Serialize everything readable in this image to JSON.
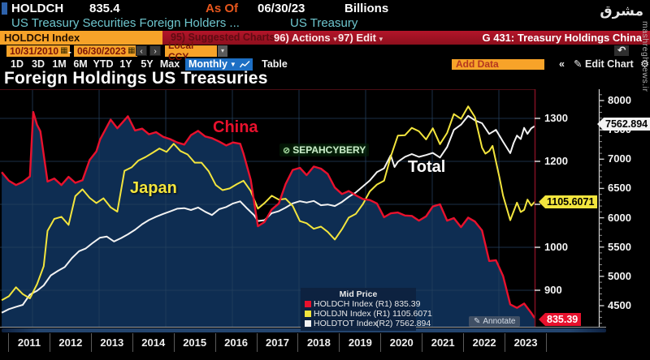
{
  "colors": {
    "accent_orange": "#f7a329",
    "bar_red": "#a31323",
    "blue_chip": "#1d6fc4",
    "china_red": "#e8112d",
    "japan_yellow": "#f3e53d",
    "total_white": "#f2f2f2",
    "fill_navy": "#0e2d52",
    "cyan_text": "#6ec6ce"
  },
  "icons": {
    "calendar": "▦",
    "caret_down": "▾",
    "caret_down_big": "▼",
    "prev": "‹",
    "next": "›",
    "collapse": "«",
    "pencil": "✎",
    "gear": "⚙",
    "undo": "↶",
    "sepah_circle": "⊘"
  },
  "header": {
    "ticker": "HOLDCH",
    "last_value": "835.4",
    "as_of_label": "As Of",
    "as_of_date": "06/30/23",
    "units": "Billions",
    "description": "US Treasury Securities Foreign Holders ...",
    "description2": "US Treasury"
  },
  "menu_bar": {
    "security_chip": "HOLDCH Index",
    "suggested": "95) Suggested Charts",
    "actions": "96) Actions",
    "edit": "97) Edit",
    "title_right": "G 431: Treasury Holdings China"
  },
  "toolbar": {
    "date_from": "10/31/2010",
    "dash": "-",
    "date_to": "06/30/2023",
    "currency": "Local CCY",
    "ranges": [
      "1D",
      "3D",
      "1M",
      "6M",
      "YTD",
      "1Y",
      "5Y",
      "Max"
    ],
    "period": "Monthly",
    "table": "Table",
    "add_data": "Add Data",
    "edit_chart": "Edit Chart"
  },
  "chart": {
    "title": "Foreign Holdings US Treasuries",
    "series_labels": {
      "china": "China",
      "japan": "Japan",
      "total": "Total"
    },
    "legend": {
      "title": "Mid Price",
      "rows": [
        {
          "name": "HOLDCH Index",
          "axis": "(R1)",
          "value": "835.39"
        },
        {
          "name": "HOLDJN Index",
          "axis": "(R1)",
          "value": "1105.6071"
        },
        {
          "name": "HOLDTOT Index",
          "axis": "(R2)",
          "value": "7562.894"
        }
      ]
    },
    "annotate": "Annotate",
    "tags": {
      "total": "7562.894",
      "japan": "1105.6071",
      "china": "835.39"
    }
  },
  "watermarks": {
    "sepah": "SEPAHCYBERY",
    "logo": "مشرق",
    "site": "mashreghnews.ir"
  },
  "chart_data": {
    "type": "line",
    "title": "Foreign Holdings US Treasuries",
    "x_domain": [
      2010.79,
      2023.5
    ],
    "x_ticks": [
      "2011",
      "2012",
      "2013",
      "2014",
      "2015",
      "2016",
      "2017",
      "2018",
      "2019",
      "2020",
      "2021",
      "2022",
      "2023"
    ],
    "axes": {
      "r1": {
        "side": "right-inner",
        "ticks": [
          1300,
          1200,
          1100,
          1000,
          900
        ],
        "range": [
          815,
          1368
        ]
      },
      "r2": {
        "side": "right-outer",
        "ticks": [
          8000,
          7500,
          7000,
          6500,
          6000,
          5500,
          5000,
          4500
        ],
        "range": [
          4140,
          8194
        ]
      }
    },
    "series": [
      {
        "name": "HOLDCH Index",
        "label": "China",
        "axis": "r1",
        "color": "#e8112d",
        "fill": true,
        "last": 835.39,
        "points": [
          [
            2010.83,
            1175
          ],
          [
            2011.0,
            1155
          ],
          [
            2011.17,
            1145
          ],
          [
            2011.33,
            1152
          ],
          [
            2011.5,
            1165
          ],
          [
            2011.58,
            1315
          ],
          [
            2011.67,
            1285
          ],
          [
            2011.75,
            1270
          ],
          [
            2011.92,
            1153
          ],
          [
            2012.08,
            1160
          ],
          [
            2012.25,
            1145
          ],
          [
            2012.42,
            1164
          ],
          [
            2012.58,
            1150
          ],
          [
            2012.75,
            1156
          ],
          [
            2012.92,
            1203
          ],
          [
            2013.08,
            1223
          ],
          [
            2013.17,
            1251
          ],
          [
            2013.42,
            1297
          ],
          [
            2013.58,
            1277
          ],
          [
            2013.83,
            1305
          ],
          [
            2014.0,
            1272
          ],
          [
            2014.17,
            1276
          ],
          [
            2014.33,
            1263
          ],
          [
            2014.5,
            1268
          ],
          [
            2014.67,
            1257
          ],
          [
            2014.83,
            1252
          ],
          [
            2015.0,
            1244
          ],
          [
            2015.17,
            1239
          ],
          [
            2015.33,
            1261
          ],
          [
            2015.5,
            1271
          ],
          [
            2015.67,
            1258
          ],
          [
            2015.83,
            1254
          ],
          [
            2016.0,
            1246
          ],
          [
            2016.17,
            1237
          ],
          [
            2016.33,
            1244
          ],
          [
            2016.5,
            1241
          ],
          [
            2016.58,
            1218
          ],
          [
            2016.75,
            1157
          ],
          [
            2016.92,
            1049
          ],
          [
            2017.08,
            1059
          ],
          [
            2017.25,
            1088
          ],
          [
            2017.42,
            1102
          ],
          [
            2017.58,
            1147
          ],
          [
            2017.75,
            1180
          ],
          [
            2017.92,
            1185
          ],
          [
            2018.08,
            1168
          ],
          [
            2018.25,
            1188
          ],
          [
            2018.42,
            1183
          ],
          [
            2018.58,
            1171
          ],
          [
            2018.75,
            1139
          ],
          [
            2018.92,
            1124
          ],
          [
            2019.08,
            1131
          ],
          [
            2019.25,
            1121
          ],
          [
            2019.42,
            1112
          ],
          [
            2019.58,
            1110
          ],
          [
            2019.75,
            1102
          ],
          [
            2019.92,
            1070
          ],
          [
            2020.08,
            1079
          ],
          [
            2020.25,
            1081
          ],
          [
            2020.42,
            1074
          ],
          [
            2020.58,
            1073
          ],
          [
            2020.75,
            1062
          ],
          [
            2020.92,
            1072
          ],
          [
            2021.08,
            1095
          ],
          [
            2021.25,
            1100
          ],
          [
            2021.42,
            1062
          ],
          [
            2021.58,
            1068
          ],
          [
            2021.75,
            1047
          ],
          [
            2021.92,
            1069
          ],
          [
            2022.08,
            1060
          ],
          [
            2022.25,
            1039
          ],
          [
            2022.42,
            968
          ],
          [
            2022.58,
            970
          ],
          [
            2022.75,
            933
          ],
          [
            2022.92,
            867
          ],
          [
            2023.08,
            859
          ],
          [
            2023.25,
            869
          ],
          [
            2023.42,
            847
          ],
          [
            2023.5,
            835.39
          ]
        ]
      },
      {
        "name": "HOLDJN Index",
        "label": "Japan",
        "axis": "r1",
        "color": "#f3e53d",
        "fill": false,
        "last": 1105.6071,
        "points": [
          [
            2010.83,
            877
          ],
          [
            2011.0,
            886
          ],
          [
            2011.17,
            907
          ],
          [
            2011.33,
            891
          ],
          [
            2011.5,
            881
          ],
          [
            2011.67,
            914
          ],
          [
            2011.83,
            956
          ],
          [
            2011.92,
            1038
          ],
          [
            2012.08,
            1066
          ],
          [
            2012.25,
            1071
          ],
          [
            2012.42,
            1052
          ],
          [
            2012.58,
            1119
          ],
          [
            2012.75,
            1135
          ],
          [
            2012.92,
            1115
          ],
          [
            2013.08,
            1103
          ],
          [
            2013.25,
            1114
          ],
          [
            2013.42,
            1093
          ],
          [
            2013.58,
            1083
          ],
          [
            2013.75,
            1178
          ],
          [
            2013.92,
            1186
          ],
          [
            2014.08,
            1202
          ],
          [
            2014.25,
            1210
          ],
          [
            2014.42,
            1220
          ],
          [
            2014.58,
            1230
          ],
          [
            2014.75,
            1222
          ],
          [
            2014.92,
            1241
          ],
          [
            2015.08,
            1224
          ],
          [
            2015.25,
            1216
          ],
          [
            2015.42,
            1197
          ],
          [
            2015.58,
            1197
          ],
          [
            2015.75,
            1177
          ],
          [
            2015.92,
            1145
          ],
          [
            2016.08,
            1133
          ],
          [
            2016.25,
            1137
          ],
          [
            2016.42,
            1147
          ],
          [
            2016.58,
            1155
          ],
          [
            2016.75,
            1131
          ],
          [
            2016.92,
            1090
          ],
          [
            2017.08,
            1103
          ],
          [
            2017.25,
            1120
          ],
          [
            2017.42,
            1111
          ],
          [
            2017.58,
            1113
          ],
          [
            2017.75,
            1096
          ],
          [
            2017.92,
            1061
          ],
          [
            2018.08,
            1056
          ],
          [
            2018.25,
            1043
          ],
          [
            2018.42,
            1048
          ],
          [
            2018.58,
            1036
          ],
          [
            2018.75,
            1018
          ],
          [
            2018.92,
            1042
          ],
          [
            2019.08,
            1069
          ],
          [
            2019.25,
            1078
          ],
          [
            2019.42,
            1101
          ],
          [
            2019.58,
            1130
          ],
          [
            2019.75,
            1146
          ],
          [
            2019.92,
            1155
          ],
          [
            2020.08,
            1211
          ],
          [
            2020.25,
            1260
          ],
          [
            2020.42,
            1261
          ],
          [
            2020.58,
            1278
          ],
          [
            2020.75,
            1270
          ],
          [
            2020.92,
            1251
          ],
          [
            2021.08,
            1277
          ],
          [
            2021.25,
            1240
          ],
          [
            2021.42,
            1266
          ],
          [
            2021.58,
            1310
          ],
          [
            2021.75,
            1299
          ],
          [
            2021.92,
            1328
          ],
          [
            2022.08,
            1303
          ],
          [
            2022.25,
            1232
          ],
          [
            2022.33,
            1218
          ],
          [
            2022.42,
            1224
          ],
          [
            2022.5,
            1236
          ],
          [
            2022.67,
            1160
          ],
          [
            2022.75,
            1120
          ],
          [
            2022.92,
            1063
          ],
          [
            2023.08,
            1104
          ],
          [
            2023.17,
            1082
          ],
          [
            2023.25,
            1087
          ],
          [
            2023.33,
            1111
          ],
          [
            2023.42,
            1097
          ],
          [
            2023.5,
            1105.6071
          ]
        ]
      },
      {
        "name": "HOLDTOT Index",
        "label": "Total",
        "axis": "r2",
        "color": "#f2f2f2",
        "fill": false,
        "last": 7562.894,
        "points": [
          [
            2010.83,
            4380
          ],
          [
            2011.0,
            4440
          ],
          [
            2011.17,
            4481
          ],
          [
            2011.33,
            4514
          ],
          [
            2011.5,
            4690
          ],
          [
            2011.67,
            4755
          ],
          [
            2011.83,
            4846
          ],
          [
            2012.0,
            5017
          ],
          [
            2012.17,
            5095
          ],
          [
            2012.33,
            5158
          ],
          [
            2012.5,
            5311
          ],
          [
            2012.67,
            5430
          ],
          [
            2012.83,
            5476
          ],
          [
            2013.0,
            5573
          ],
          [
            2013.17,
            5661
          ],
          [
            2013.33,
            5679
          ],
          [
            2013.5,
            5595
          ],
          [
            2013.67,
            5653
          ],
          [
            2013.83,
            5717
          ],
          [
            2014.0,
            5795
          ],
          [
            2014.17,
            5890
          ],
          [
            2014.33,
            5961
          ],
          [
            2014.5,
            6018
          ],
          [
            2014.67,
            6066
          ],
          [
            2014.83,
            6107
          ],
          [
            2015.0,
            6154
          ],
          [
            2015.17,
            6164
          ],
          [
            2015.33,
            6133
          ],
          [
            2015.5,
            6175
          ],
          [
            2015.67,
            6102
          ],
          [
            2015.83,
            6046
          ],
          [
            2016.0,
            6146
          ],
          [
            2016.17,
            6183
          ],
          [
            2016.33,
            6245
          ],
          [
            2016.5,
            6281
          ],
          [
            2016.67,
            6155
          ],
          [
            2016.83,
            6044
          ],
          [
            2016.92,
            5944
          ],
          [
            2017.08,
            5959
          ],
          [
            2017.25,
            6079
          ],
          [
            2017.42,
            6113
          ],
          [
            2017.58,
            6172
          ],
          [
            2017.75,
            6246
          ],
          [
            2017.92,
            6283
          ],
          [
            2018.08,
            6260
          ],
          [
            2018.25,
            6288
          ],
          [
            2018.42,
            6214
          ],
          [
            2018.58,
            6227
          ],
          [
            2018.75,
            6200
          ],
          [
            2018.92,
            6270
          ],
          [
            2019.08,
            6356
          ],
          [
            2019.25,
            6433
          ],
          [
            2019.42,
            6537
          ],
          [
            2019.58,
            6636
          ],
          [
            2019.75,
            6779
          ],
          [
            2019.92,
            6844
          ],
          [
            2020.08,
            7067
          ],
          [
            2020.17,
            6866
          ],
          [
            2020.25,
            6954
          ],
          [
            2020.42,
            7040
          ],
          [
            2020.58,
            7087
          ],
          [
            2020.75,
            7038
          ],
          [
            2020.92,
            7071
          ],
          [
            2021.08,
            7107
          ],
          [
            2021.25,
            7028
          ],
          [
            2021.42,
            7207
          ],
          [
            2021.58,
            7500
          ],
          [
            2021.75,
            7590
          ],
          [
            2021.92,
            7740
          ],
          [
            2022.08,
            7662
          ],
          [
            2022.25,
            7613
          ],
          [
            2022.42,
            7430
          ],
          [
            2022.58,
            7501
          ],
          [
            2022.75,
            7296
          ],
          [
            2022.92,
            7103
          ],
          [
            2023.0,
            7274
          ],
          [
            2023.08,
            7402
          ],
          [
            2023.17,
            7343
          ],
          [
            2023.25,
            7534
          ],
          [
            2023.33,
            7431
          ],
          [
            2023.42,
            7527
          ],
          [
            2023.5,
            7562.894
          ]
        ]
      }
    ]
  }
}
